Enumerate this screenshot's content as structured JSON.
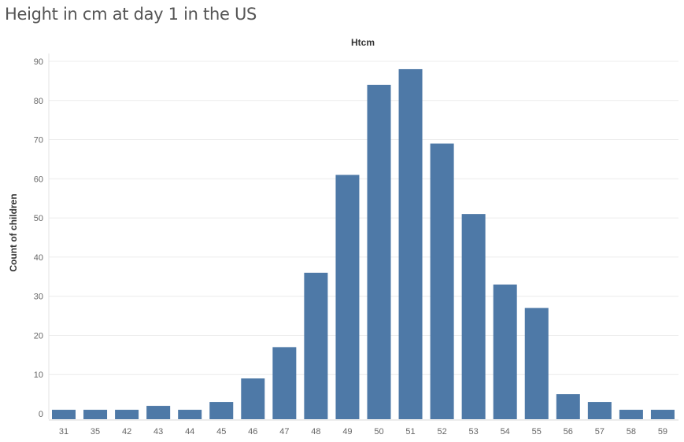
{
  "title": "Height in cm at day 1 in the US",
  "chart_data": {
    "type": "bar",
    "title": "Height in cm at day 1 in the US",
    "column_header": "Htcm",
    "xlabel": "",
    "ylabel": "Count of children",
    "categories": [
      "31",
      "35",
      "42",
      "43",
      "44",
      "45",
      "46",
      "47",
      "48",
      "49",
      "50",
      "51",
      "52",
      "53",
      "54",
      "55",
      "56",
      "57",
      "58",
      "59"
    ],
    "values": [
      1,
      1,
      1,
      2,
      1,
      3,
      9,
      17,
      36,
      61,
      84,
      88,
      69,
      51,
      33,
      27,
      5,
      3,
      1,
      1
    ],
    "ylim": [
      0,
      90
    ],
    "yticks": [
      0,
      10,
      20,
      30,
      40,
      50,
      60,
      70,
      80,
      90
    ],
    "grid": true,
    "bar_color": "#4e79a7"
  }
}
